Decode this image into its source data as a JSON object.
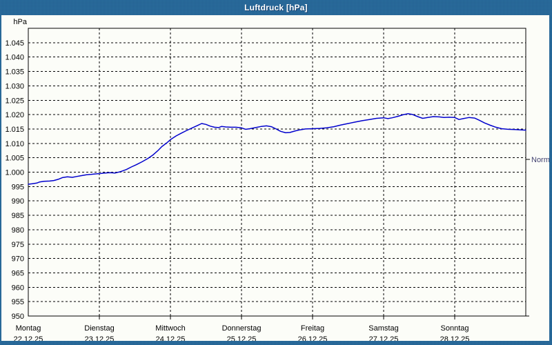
{
  "window": {
    "title": "Luftdruck [hPa]"
  },
  "colors": {
    "frame_blue": "#236799",
    "content_background": "#fcfdf8",
    "line_blue": "#0000cd",
    "grid_black": "#000000",
    "axis_text": "#000000",
    "normal_label_text": "#3f3f6e",
    "title_text": "#ffffff"
  },
  "chart_data": {
    "type": "line",
    "title": "Luftdruck [hPa]",
    "y_axis": {
      "unit_label": "hPa",
      "min": 950,
      "max": 1050,
      "tick_step": 5,
      "tick_labels": [
        "1.045",
        "1.040",
        "1.035",
        "1.030",
        "1.025",
        "1.020",
        "1.015",
        "1.010",
        "1.005",
        "1.000",
        "995",
        "990",
        "985",
        "980",
        "975",
        "970",
        "965",
        "960",
        "955",
        "950"
      ],
      "tick_values": [
        1045,
        1040,
        1035,
        1030,
        1025,
        1020,
        1015,
        1010,
        1005,
        1000,
        995,
        990,
        985,
        980,
        975,
        970,
        965,
        960,
        955,
        950
      ]
    },
    "x_axis": {
      "days": [
        {
          "name": "Montag",
          "date": "22.12.25"
        },
        {
          "name": "Dienstag",
          "date": "23.12.25"
        },
        {
          "name": "Mittwoch",
          "date": "24.12.25"
        },
        {
          "name": "Donnerstag",
          "date": "25.12.25"
        },
        {
          "name": "Freitag",
          "date": "26.12.25"
        },
        {
          "name": "Samstag",
          "date": "27.12.25"
        },
        {
          "name": "Sonntag",
          "date": "28.12.25"
        }
      ]
    },
    "grid": "dashed",
    "annotations": [
      {
        "label": "Normal",
        "value": 1004.4,
        "side": "right"
      }
    ],
    "series": [
      {
        "name": "Luftdruck",
        "color": "#0000cd",
        "points": [
          [
            0.0,
            995.8
          ],
          [
            0.06,
            996.0
          ],
          [
            0.12,
            996.2
          ],
          [
            0.16,
            996.6
          ],
          [
            0.22,
            996.8
          ],
          [
            0.3,
            996.9
          ],
          [
            0.36,
            997.1
          ],
          [
            0.42,
            997.5
          ],
          [
            0.48,
            998.1
          ],
          [
            0.55,
            998.4
          ],
          [
            0.62,
            998.2
          ],
          [
            0.68,
            998.5
          ],
          [
            0.75,
            998.8
          ],
          [
            0.82,
            999.1
          ],
          [
            0.88,
            999.2
          ],
          [
            0.95,
            999.4
          ],
          [
            1.0,
            999.5
          ],
          [
            1.08,
            999.7
          ],
          [
            1.15,
            999.8
          ],
          [
            1.22,
            999.7
          ],
          [
            1.3,
            1000.2
          ],
          [
            1.38,
            1000.9
          ],
          [
            1.45,
            1001.8
          ],
          [
            1.52,
            1002.6
          ],
          [
            1.6,
            1003.6
          ],
          [
            1.68,
            1004.7
          ],
          [
            1.75,
            1005.9
          ],
          [
            1.82,
            1007.4
          ],
          [
            1.88,
            1008.9
          ],
          [
            1.95,
            1010.2
          ],
          [
            2.0,
            1011.3
          ],
          [
            2.08,
            1012.6
          ],
          [
            2.15,
            1013.5
          ],
          [
            2.22,
            1014.4
          ],
          [
            2.3,
            1015.3
          ],
          [
            2.38,
            1016.2
          ],
          [
            2.44,
            1016.9
          ],
          [
            2.5,
            1016.6
          ],
          [
            2.56,
            1016.0
          ],
          [
            2.62,
            1015.6
          ],
          [
            2.68,
            1015.5
          ],
          [
            2.72,
            1015.9
          ],
          [
            2.78,
            1015.7
          ],
          [
            2.85,
            1015.6
          ],
          [
            2.92,
            1015.6
          ],
          [
            3.0,
            1015.4
          ],
          [
            3.06,
            1014.9
          ],
          [
            3.12,
            1015.1
          ],
          [
            3.2,
            1015.5
          ],
          [
            3.28,
            1015.9
          ],
          [
            3.35,
            1016.1
          ],
          [
            3.42,
            1015.8
          ],
          [
            3.48,
            1015.1
          ],
          [
            3.55,
            1014.2
          ],
          [
            3.62,
            1013.7
          ],
          [
            3.68,
            1013.8
          ],
          [
            3.75,
            1014.3
          ],
          [
            3.82,
            1014.7
          ],
          [
            3.9,
            1015.0
          ],
          [
            4.0,
            1015.1
          ],
          [
            4.1,
            1015.2
          ],
          [
            4.2,
            1015.4
          ],
          [
            4.3,
            1015.8
          ],
          [
            4.4,
            1016.4
          ],
          [
            4.5,
            1016.9
          ],
          [
            4.6,
            1017.4
          ],
          [
            4.7,
            1017.9
          ],
          [
            4.8,
            1018.3
          ],
          [
            4.9,
            1018.7
          ],
          [
            5.0,
            1018.9
          ],
          [
            5.06,
            1018.6
          ],
          [
            5.12,
            1018.9
          ],
          [
            5.2,
            1019.4
          ],
          [
            5.28,
            1020.0
          ],
          [
            5.34,
            1020.3
          ],
          [
            5.4,
            1020.1
          ],
          [
            5.48,
            1019.3
          ],
          [
            5.55,
            1018.7
          ],
          [
            5.62,
            1019.0
          ],
          [
            5.7,
            1019.3
          ],
          [
            5.78,
            1019.2
          ],
          [
            5.85,
            1019.0
          ],
          [
            5.92,
            1019.1
          ],
          [
            6.0,
            1019.0
          ],
          [
            6.06,
            1018.3
          ],
          [
            6.12,
            1018.6
          ],
          [
            6.2,
            1019.0
          ],
          [
            6.28,
            1018.8
          ],
          [
            6.35,
            1018.0
          ],
          [
            6.42,
            1017.1
          ],
          [
            6.5,
            1016.3
          ],
          [
            6.58,
            1015.6
          ],
          [
            6.66,
            1015.1
          ],
          [
            6.75,
            1014.9
          ],
          [
            6.85,
            1014.8
          ],
          [
            6.93,
            1014.7
          ],
          [
            7.0,
            1014.6
          ]
        ]
      }
    ]
  }
}
